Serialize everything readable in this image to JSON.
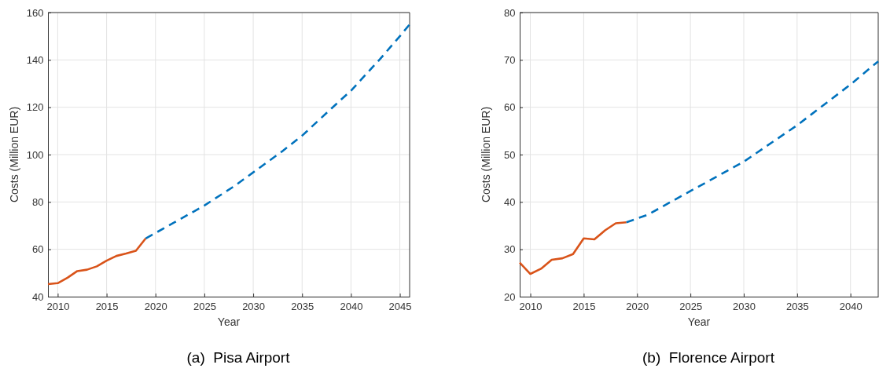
{
  "chart_data": [
    {
      "type": "line",
      "title": "(a)  Pisa Airport",
      "xlabel": "Year",
      "ylabel": "Costs (Million EUR)",
      "xlim": [
        2009,
        2046
      ],
      "xticks": [
        2010,
        2015,
        2020,
        2025,
        2030,
        2035,
        2040,
        2045
      ],
      "ylim": [
        40,
        160
      ],
      "yticks": [
        40,
        60,
        80,
        100,
        120,
        140,
        160
      ],
      "grid": true,
      "series": [
        {
          "color": "#d95319",
          "line_style": "solid",
          "x": [
            2009,
            2010,
            2011,
            2012,
            2013,
            2014,
            2015,
            2016,
            2017,
            2018,
            2019
          ],
          "values": [
            45.3,
            45.7,
            48,
            50.8,
            51.4,
            52.8,
            55.2,
            57.2,
            58.2,
            59.4,
            64.6
          ]
        },
        {
          "color": "#0072bd",
          "line_style": "dashed",
          "x": [
            2019,
            2022,
            2025,
            2028,
            2030,
            2033,
            2035,
            2038,
            2040,
            2043,
            2045,
            2046
          ],
          "values": [
            64.6,
            71.5,
            78.5,
            86.5,
            92.5,
            101.5,
            108,
            119.5,
            127,
            140.5,
            150,
            155
          ]
        }
      ]
    },
    {
      "type": "line",
      "title": "(b)  Florence Airport",
      "xlabel": "Year",
      "ylabel": "Costs (Million EUR)",
      "xlim": [
        2009,
        2042.6
      ],
      "xticks": [
        2010,
        2015,
        2020,
        2025,
        2030,
        2035,
        2040
      ],
      "ylim": [
        20,
        80
      ],
      "yticks": [
        20,
        30,
        40,
        50,
        60,
        70,
        80
      ],
      "grid": true,
      "series": [
        {
          "color": "#d95319",
          "line_style": "solid",
          "x": [
            2009,
            2010,
            2011,
            2012,
            2013,
            2014,
            2015,
            2016,
            2017,
            2018,
            2019
          ],
          "values": [
            27.2,
            24.8,
            25.9,
            27.8,
            28.1,
            29.0,
            32.3,
            32.1,
            34.0,
            35.5,
            35.7
          ]
        },
        {
          "color": "#0072bd",
          "line_style": "dashed",
          "x": [
            2019,
            2021,
            2025,
            2030,
            2035,
            2040,
            2042.6
          ],
          "values": [
            35.7,
            37.3,
            42.3,
            48.5,
            56.2,
            64.8,
            69.7
          ]
        }
      ]
    }
  ]
}
